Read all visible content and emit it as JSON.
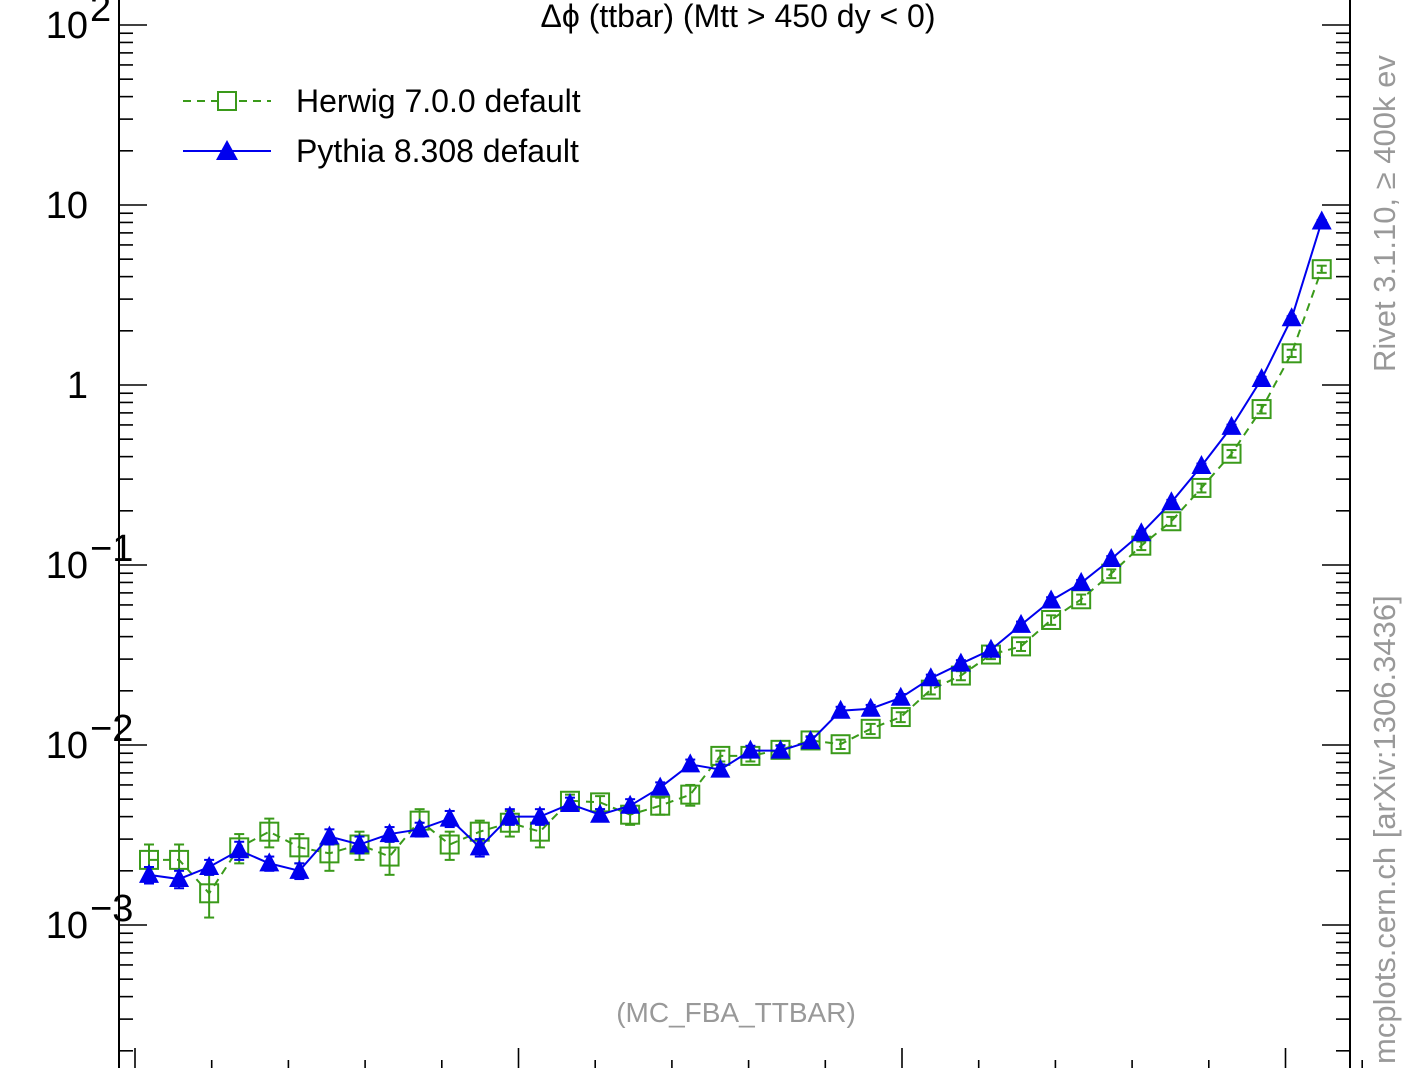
{
  "chart_data": {
    "type": "line",
    "title": "Δϕ (ttbar) (Mtt > 450 dy < 0)",
    "xlabel": "",
    "ylabel": "",
    "y_scale": "log",
    "y_tick_labels": [
      {
        "value": 100,
        "base": "10",
        "exp": "2"
      },
      {
        "value": 10,
        "base": "10",
        "exp": ""
      },
      {
        "value": 1,
        "base": "1",
        "exp": ""
      },
      {
        "value": 0.1,
        "base": "10",
        "exp": "−1"
      },
      {
        "value": 0.01,
        "base": "10",
        "exp": "−2"
      },
      {
        "value": 0.001,
        "base": "10",
        "exp": "−3"
      }
    ],
    "legend_position": "top-left",
    "series": [
      {
        "name": "Herwig 7.0.0 default",
        "color": "#3a9a1a",
        "line": "dashed",
        "marker": "open-square",
        "values": [
          0.0023,
          0.0023,
          0.0015,
          0.0027,
          0.0033,
          0.0027,
          0.0025,
          0.0028,
          0.0024,
          0.0038,
          0.0028,
          0.0033,
          0.0037,
          0.0033,
          0.0049,
          0.0048,
          0.0041,
          0.0046,
          0.0053,
          0.0087,
          0.0087,
          0.0094,
          0.0106,
          0.0101,
          0.0123,
          0.0143,
          0.0203,
          0.0243,
          0.0318,
          0.0353,
          0.0495,
          0.0645,
          0.0895,
          0.128,
          0.175,
          0.268,
          0.415,
          0.735,
          1.5,
          4.4
        ],
        "errors": [
          0.0005,
          0.0005,
          0.0004,
          0.0005,
          0.0006,
          0.0005,
          0.0005,
          0.0005,
          0.0005,
          0.0006,
          0.0005,
          0.0005,
          0.0006,
          0.0006,
          0.0004,
          0.0004,
          0.0005,
          0.0005,
          0.0007,
          0.0006,
          0.0006,
          0.0006,
          0.0006,
          0.0006,
          0.0008,
          0.0009,
          0.0012,
          0.0014,
          0.0018,
          0.002,
          0.003,
          0.004,
          0.005,
          0.007,
          0.01,
          0.015,
          0.02,
          0.04,
          0.07,
          0.2
        ]
      },
      {
        "name": "Pythia 8.308 default",
        "color": "#0000ee",
        "line": "solid",
        "marker": "filled-triangle",
        "values": [
          0.0019,
          0.0018,
          0.0021,
          0.0026,
          0.0022,
          0.002,
          0.0031,
          0.0028,
          0.0032,
          0.0034,
          0.0039,
          0.0027,
          0.004,
          0.004,
          0.0047,
          0.0041,
          0.0046,
          0.0058,
          0.0078,
          0.0073,
          0.0093,
          0.0093,
          0.0105,
          0.0155,
          0.0159,
          0.0183,
          0.0235,
          0.0283,
          0.0338,
          0.0465,
          0.0635,
          0.0795,
          0.108,
          0.15,
          0.223,
          0.355,
          0.585,
          1.08,
          2.35,
          8.1
        ],
        "errors": [
          0.0002,
          0.0002,
          0.0002,
          0.0003,
          0.0002,
          0.0002,
          0.0003,
          0.0003,
          0.0003,
          0.0003,
          0.0004,
          0.0003,
          0.0004,
          0.0004,
          0.0004,
          0.0003,
          0.0004,
          0.0004,
          0.0005,
          0.0005,
          0.0006,
          0.0006,
          0.0006,
          0.0008,
          0.0008,
          0.0009,
          0.0011,
          0.0013,
          0.0015,
          0.002,
          0.0027,
          0.003,
          0.004,
          0.005,
          0.007,
          0.011,
          0.017,
          0.03,
          0.06,
          0.15
        ]
      }
    ],
    "watermark": "(MC_FBA_TTBAR)",
    "side_label_top": "Rivet 3.1.10, ≥ 400k ev",
    "side_label_bottom": "mcplots.cern.ch [arXiv:1306.3436]"
  }
}
